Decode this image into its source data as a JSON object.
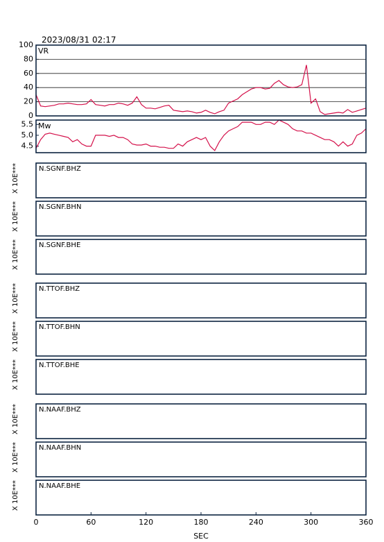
{
  "title": "2023/08/31 02:17",
  "x_axis": {
    "xlim": [
      0,
      360
    ],
    "xticks": [
      0,
      60,
      120,
      180,
      240,
      300,
      360
    ],
    "xlabel": "SEC"
  },
  "chart_data": [
    {
      "type": "line",
      "label": "VR",
      "color": "#d4104a",
      "grid": true,
      "ylim": [
        0,
        100
      ],
      "yticks": [
        0,
        20,
        40,
        60,
        80,
        100
      ],
      "x": [
        0,
        5,
        10,
        15,
        20,
        25,
        30,
        35,
        40,
        45,
        50,
        55,
        60,
        65,
        70,
        75,
        80,
        85,
        90,
        95,
        100,
        105,
        110,
        115,
        120,
        125,
        130,
        135,
        140,
        145,
        150,
        155,
        160,
        165,
        170,
        175,
        180,
        185,
        190,
        195,
        200,
        205,
        210,
        215,
        220,
        225,
        230,
        235,
        240,
        245,
        250,
        255,
        260,
        265,
        270,
        275,
        280,
        285,
        290,
        295,
        300,
        305,
        310,
        315,
        320,
        325,
        330,
        335,
        340,
        345,
        350,
        355,
        360
      ],
      "values": [
        30,
        14,
        13,
        14,
        15,
        17,
        17,
        18,
        17,
        16,
        16,
        17,
        23,
        16,
        15,
        14,
        16,
        16,
        18,
        17,
        15,
        18,
        27,
        16,
        11,
        11,
        10,
        12,
        14,
        15,
        8,
        7,
        6,
        7,
        6,
        4,
        5,
        8,
        5,
        3,
        6,
        8,
        18,
        21,
        24,
        30,
        34,
        38,
        40,
        40,
        38,
        39,
        46,
        50,
        44,
        41,
        40,
        41,
        44,
        72,
        18,
        24,
        6,
        2,
        3,
        4,
        5,
        4,
        9,
        5,
        7,
        9,
        11
      ]
    },
    {
      "type": "line",
      "label": "Mw",
      "color": "#d4104a",
      "grid": false,
      "ylim": [
        4.2,
        5.7
      ],
      "yticks": [
        4.5,
        {
          "value": 5,
          "label": "5.0"
        },
        5.5
      ],
      "x": [
        0,
        5,
        10,
        15,
        20,
        25,
        30,
        35,
        40,
        45,
        50,
        55,
        60,
        65,
        70,
        75,
        80,
        85,
        90,
        95,
        100,
        105,
        110,
        115,
        120,
        125,
        130,
        135,
        140,
        145,
        150,
        155,
        160,
        165,
        170,
        175,
        180,
        185,
        190,
        195,
        200,
        205,
        210,
        215,
        220,
        225,
        230,
        235,
        240,
        245,
        250,
        255,
        260,
        265,
        270,
        275,
        280,
        285,
        290,
        295,
        300,
        305,
        310,
        315,
        320,
        325,
        330,
        335,
        340,
        345,
        350,
        355,
        360
      ],
      "values": [
        4.4,
        4.8,
        5.05,
        5.1,
        5.05,
        5.0,
        4.95,
        4.9,
        4.7,
        4.8,
        4.6,
        4.5,
        4.5,
        5.0,
        5.0,
        5.0,
        4.95,
        5.0,
        4.9,
        4.9,
        4.8,
        4.6,
        4.55,
        4.55,
        4.6,
        4.5,
        4.5,
        4.45,
        4.45,
        4.4,
        4.4,
        4.6,
        4.5,
        4.7,
        4.8,
        4.9,
        4.8,
        4.9,
        4.5,
        4.3,
        4.7,
        5.0,
        5.2,
        5.3,
        5.4,
        5.6,
        5.6,
        5.6,
        5.5,
        5.5,
        5.6,
        5.6,
        5.5,
        5.7,
        5.6,
        5.5,
        5.3,
        5.2,
        5.2,
        5.1,
        5.1,
        5.0,
        4.9,
        4.8,
        4.8,
        4.7,
        4.5,
        4.7,
        4.5,
        4.6,
        5.0,
        5.1,
        5.3
      ]
    }
  ],
  "traces": [
    {
      "label": "N.SGNF.BHZ",
      "ylabel": "X 10E***"
    },
    {
      "label": "N.SGNF.BHN",
      "ylabel": "X 10E***"
    },
    {
      "label": "N.SGNF.BHE",
      "ylabel": "X 10E***"
    },
    {
      "label": "N.TTOF.BHZ",
      "ylabel": "X 10E***"
    },
    {
      "label": "N.TTOF.BHN",
      "ylabel": "X 10E***"
    },
    {
      "label": "N.TTOF.BHE",
      "ylabel": "X 10E***"
    },
    {
      "label": "N.NAAF.BHZ",
      "ylabel": "X 10E***"
    },
    {
      "label": "N.NAAF.BHN",
      "ylabel": "X 10E***"
    },
    {
      "label": "N.NAAF.BHE",
      "ylabel": "X 10E***"
    }
  ]
}
